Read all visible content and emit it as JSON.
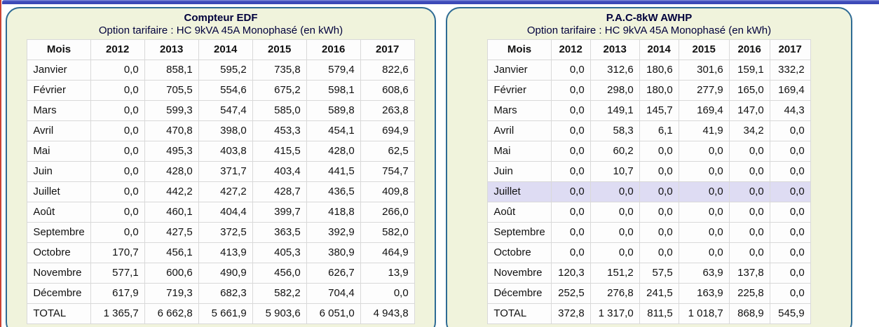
{
  "colors": {
    "panel_background": "#f0f3dc",
    "panel_border": "#2e6b94",
    "top_bar": "#3f4cbb",
    "left_edge_line": "#cc4433",
    "highlight_row": "#dedcf3",
    "cell_background": "#fdfdfd"
  },
  "panels": [
    {
      "title": "Compteur EDF",
      "subtitle": "Option tarifaire : HC 9kVA 45A Monophasé (en kWh)",
      "unit": "kWh",
      "columns": [
        "Mois",
        "2012",
        "2013",
        "2014",
        "2015",
        "2016",
        "2017"
      ],
      "highlighted_row_index": null,
      "rows": [
        {
          "mois": "Janvier",
          "values": [
            "0,0",
            "858,1",
            "595,2",
            "735,8",
            "579,4",
            "822,6"
          ]
        },
        {
          "mois": "Février",
          "values": [
            "0,0",
            "705,5",
            "554,6",
            "675,2",
            "598,1",
            "608,6"
          ]
        },
        {
          "mois": "Mars",
          "values": [
            "0,0",
            "599,3",
            "547,4",
            "585,0",
            "589,8",
            "263,8"
          ]
        },
        {
          "mois": "Avril",
          "values": [
            "0,0",
            "470,8",
            "398,0",
            "453,3",
            "454,1",
            "694,9"
          ]
        },
        {
          "mois": "Mai",
          "values": [
            "0,0",
            "495,3",
            "403,8",
            "415,5",
            "428,0",
            "62,5"
          ]
        },
        {
          "mois": "Juin",
          "values": [
            "0,0",
            "428,0",
            "371,7",
            "403,4",
            "441,5",
            "754,7"
          ]
        },
        {
          "mois": "Juillet",
          "values": [
            "0,0",
            "442,2",
            "427,2",
            "428,7",
            "436,5",
            "409,8"
          ]
        },
        {
          "mois": "Août",
          "values": [
            "0,0",
            "460,1",
            "404,4",
            "399,7",
            "418,8",
            "266,0"
          ]
        },
        {
          "mois": "Septembre",
          "values": [
            "0,0",
            "427,5",
            "372,5",
            "363,5",
            "392,9",
            "582,0"
          ]
        },
        {
          "mois": "Octobre",
          "values": [
            "170,7",
            "456,1",
            "413,9",
            "405,3",
            "380,9",
            "464,9"
          ]
        },
        {
          "mois": "Novembre",
          "values": [
            "577,1",
            "600,6",
            "490,9",
            "456,0",
            "626,7",
            "13,9"
          ]
        },
        {
          "mois": "Décembre",
          "values": [
            "617,9",
            "719,3",
            "682,3",
            "582,2",
            "704,4",
            "0,0"
          ]
        },
        {
          "mois": "TOTAL",
          "values": [
            "1 365,7",
            "6 662,8",
            "5 661,9",
            "5 903,6",
            "6 051,0",
            "4 943,8"
          ]
        }
      ]
    },
    {
      "title": "P.A.C-8kW AWHP",
      "subtitle": "Option tarifaire : HC 9kVA 45A Monophasé (en kWh)",
      "unit": "kWh",
      "columns": [
        "Mois",
        "2012",
        "2013",
        "2014",
        "2015",
        "2016",
        "2017"
      ],
      "highlighted_row_index": 6,
      "rows": [
        {
          "mois": "Janvier",
          "values": [
            "0,0",
            "312,6",
            "180,6",
            "301,6",
            "159,1",
            "332,2"
          ]
        },
        {
          "mois": "Février",
          "values": [
            "0,0",
            "298,0",
            "180,0",
            "277,9",
            "165,0",
            "169,4"
          ]
        },
        {
          "mois": "Mars",
          "values": [
            "0,0",
            "149,1",
            "145,7",
            "169,4",
            "147,0",
            "44,3"
          ]
        },
        {
          "mois": "Avril",
          "values": [
            "0,0",
            "58,3",
            "6,1",
            "41,9",
            "34,2",
            "0,0"
          ]
        },
        {
          "mois": "Mai",
          "values": [
            "0,0",
            "60,2",
            "0,0",
            "0,0",
            "0,0",
            "0,0"
          ]
        },
        {
          "mois": "Juin",
          "values": [
            "0,0",
            "10,7",
            "0,0",
            "0,0",
            "0,0",
            "0,0"
          ]
        },
        {
          "mois": "Juillet",
          "values": [
            "0,0",
            "0,0",
            "0,0",
            "0,0",
            "0,0",
            "0,0"
          ]
        },
        {
          "mois": "Août",
          "values": [
            "0,0",
            "0,0",
            "0,0",
            "0,0",
            "0,0",
            "0,0"
          ]
        },
        {
          "mois": "Septembre",
          "values": [
            "0,0",
            "0,0",
            "0,0",
            "0,0",
            "0,0",
            "0,0"
          ]
        },
        {
          "mois": "Octobre",
          "values": [
            "0,0",
            "0,0",
            "0,0",
            "0,0",
            "0,0",
            "0,0"
          ]
        },
        {
          "mois": "Novembre",
          "values": [
            "120,3",
            "151,2",
            "57,5",
            "63,9",
            "137,8",
            "0,0"
          ]
        },
        {
          "mois": "Décembre",
          "values": [
            "252,5",
            "276,8",
            "241,5",
            "163,9",
            "225,8",
            "0,0"
          ]
        },
        {
          "mois": "TOTAL",
          "values": [
            "372,8",
            "1 317,0",
            "811,5",
            "1 018,7",
            "868,9",
            "545,9"
          ]
        }
      ]
    }
  ]
}
